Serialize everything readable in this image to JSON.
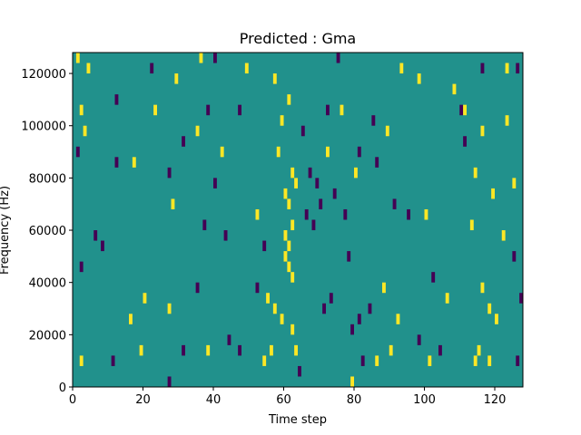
{
  "chart_data": {
    "type": "heatmap",
    "title": "Predicted : Gma",
    "xlabel": "Time step",
    "ylabel": "Frequency (Hz)",
    "xlim": [
      0,
      128
    ],
    "ylim": [
      0,
      128000
    ],
    "x_ticks": [
      0,
      20,
      40,
      60,
      80,
      100,
      120
    ],
    "y_ticks": [
      0,
      20000,
      40000,
      60000,
      80000,
      100000,
      120000
    ],
    "x_tick_labels": [
      "0",
      "20",
      "40",
      "60",
      "80",
      "100",
      "120"
    ],
    "y_tick_labels": [
      "0",
      "20000",
      "40000",
      "60000",
      "80000",
      "100000",
      "120000"
    ],
    "grid": false,
    "colors": {
      "background": "#21918c",
      "low": "#440154",
      "high": "#fde725"
    },
    "cell_height": 4000,
    "cells_high": [
      [
        1,
        124000
      ],
      [
        36,
        124000
      ],
      [
        4,
        120000
      ],
      [
        49,
        120000
      ],
      [
        93,
        120000
      ],
      [
        123,
        120000
      ],
      [
        29,
        116000
      ],
      [
        108,
        112000
      ],
      [
        57,
        116000
      ],
      [
        98,
        116000
      ],
      [
        2,
        104000
      ],
      [
        23,
        104000
      ],
      [
        61,
        108000
      ],
      [
        76,
        104000
      ],
      [
        111,
        104000
      ],
      [
        123,
        100000
      ],
      [
        3,
        96000
      ],
      [
        35,
        96000
      ],
      [
        59,
        100000
      ],
      [
        89,
        96000
      ],
      [
        116,
        96000
      ],
      [
        17,
        84000
      ],
      [
        42,
        88000
      ],
      [
        58,
        88000
      ],
      [
        60,
        72000
      ],
      [
        61,
        68000
      ],
      [
        62,
        80000
      ],
      [
        63,
        76000
      ],
      [
        60,
        56000
      ],
      [
        61,
        52000
      ],
      [
        62,
        60000
      ],
      [
        61,
        44000
      ],
      [
        62,
        40000
      ],
      [
        60,
        48000
      ],
      [
        72,
        88000
      ],
      [
        80,
        80000
      ],
      [
        114,
        80000
      ],
      [
        119,
        72000
      ],
      [
        125,
        76000
      ],
      [
        28,
        68000
      ],
      [
        52,
        64000
      ],
      [
        100,
        64000
      ],
      [
        113,
        60000
      ],
      [
        122,
        56000
      ],
      [
        16,
        24000
      ],
      [
        20,
        32000
      ],
      [
        27,
        28000
      ],
      [
        55,
        32000
      ],
      [
        57,
        28000
      ],
      [
        59,
        24000
      ],
      [
        62,
        20000
      ],
      [
        88,
        36000
      ],
      [
        92,
        24000
      ],
      [
        106,
        32000
      ],
      [
        116,
        36000
      ],
      [
        118,
        28000
      ],
      [
        120,
        24000
      ],
      [
        2,
        8000
      ],
      [
        19,
        12000
      ],
      [
        38,
        12000
      ],
      [
        54,
        8000
      ],
      [
        56,
        12000
      ],
      [
        63,
        12000
      ],
      [
        86,
        8000
      ],
      [
        90,
        12000
      ],
      [
        101,
        8000
      ],
      [
        114,
        8000
      ],
      [
        115,
        12000
      ],
      [
        118,
        8000
      ],
      [
        79,
        0
      ]
    ],
    "cells_low": [
      [
        22,
        120000
      ],
      [
        40,
        124000
      ],
      [
        75,
        124000
      ],
      [
        116,
        120000
      ],
      [
        126,
        120000
      ],
      [
        12,
        108000
      ],
      [
        38,
        104000
      ],
      [
        47,
        104000
      ],
      [
        72,
        104000
      ],
      [
        85,
        100000
      ],
      [
        110,
        104000
      ],
      [
        1,
        88000
      ],
      [
        31,
        92000
      ],
      [
        65,
        96000
      ],
      [
        81,
        88000
      ],
      [
        111,
        92000
      ],
      [
        12,
        84000
      ],
      [
        27,
        80000
      ],
      [
        40,
        76000
      ],
      [
        67,
        80000
      ],
      [
        69,
        76000
      ],
      [
        74,
        72000
      ],
      [
        86,
        84000
      ],
      [
        66,
        64000
      ],
      [
        68,
        60000
      ],
      [
        70,
        68000
      ],
      [
        77,
        64000
      ],
      [
        91,
        68000
      ],
      [
        95,
        64000
      ],
      [
        37,
        60000
      ],
      [
        43,
        56000
      ],
      [
        54,
        52000
      ],
      [
        6,
        56000
      ],
      [
        8,
        52000
      ],
      [
        78,
        48000
      ],
      [
        2,
        44000
      ],
      [
        35,
        36000
      ],
      [
        52,
        36000
      ],
      [
        71,
        28000
      ],
      [
        73,
        32000
      ],
      [
        81,
        24000
      ],
      [
        84,
        28000
      ],
      [
        102,
        40000
      ],
      [
        125,
        48000
      ],
      [
        127,
        32000
      ],
      [
        44,
        16000
      ],
      [
        47,
        12000
      ],
      [
        79,
        20000
      ],
      [
        11,
        8000
      ],
      [
        31,
        12000
      ],
      [
        64,
        4000
      ],
      [
        82,
        8000
      ],
      [
        98,
        16000
      ],
      [
        104,
        12000
      ],
      [
        126,
        8000
      ],
      [
        27,
        0
      ]
    ]
  }
}
